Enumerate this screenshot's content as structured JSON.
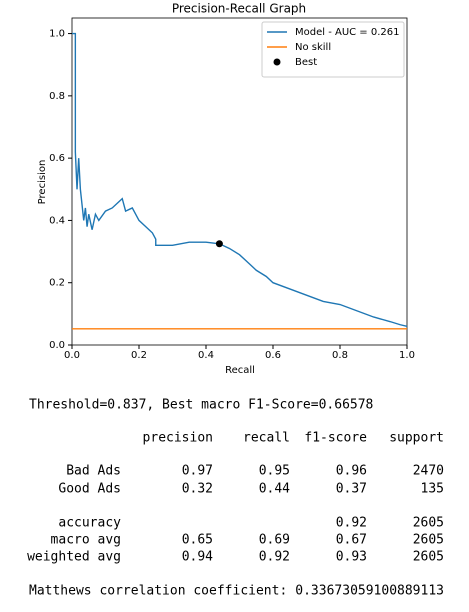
{
  "chart_data": {
    "type": "line",
    "title": "Precision-Recall Graph",
    "x_label": "Recall",
    "y_label": "Precision",
    "xlim": [
      0,
      1
    ],
    "ylim": [
      0,
      1.05
    ],
    "xticks": [
      {
        "value": 0,
        "label": "0.0"
      },
      {
        "value": 0.2,
        "label": "0.2"
      },
      {
        "value": 0.4,
        "label": "0.4"
      },
      {
        "value": 0.6,
        "label": "0.6"
      },
      {
        "value": 0.8,
        "label": "0.8"
      },
      {
        "value": 1,
        "label": "1.0"
      }
    ],
    "yticks": [
      {
        "value": 0,
        "label": "0.0"
      },
      {
        "value": 0.2,
        "label": "0.2"
      },
      {
        "value": 0.4,
        "label": "0.4"
      },
      {
        "value": 0.6,
        "label": "0.6"
      },
      {
        "value": 0.8,
        "label": "0.8"
      },
      {
        "value": 1,
        "label": "1.0"
      }
    ],
    "legend": "upper right",
    "series": [
      {
        "name": "Model - AUC = 0.261",
        "color": "#1f77b4",
        "kind": "line",
        "x": [
          0,
          0.01,
          0.01,
          0.015,
          0.02,
          0.025,
          0.03,
          0.035,
          0.04,
          0.045,
          0.05,
          0.06,
          0.07,
          0.08,
          0.1,
          0.12,
          0.14,
          0.15,
          0.16,
          0.18,
          0.2,
          0.22,
          0.24,
          0.25,
          0.25,
          0.3,
          0.35,
          0.4,
          0.44,
          0.47,
          0.5,
          0.52,
          0.55,
          0.58,
          0.6,
          0.65,
          0.7,
          0.75,
          0.8,
          0.85,
          0.9,
          0.95,
          0.98,
          1
        ],
        "values": [
          1,
          1,
          0.62,
          0.5,
          0.6,
          0.5,
          0.45,
          0.4,
          0.44,
          0.38,
          0.42,
          0.37,
          0.42,
          0.4,
          0.43,
          0.44,
          0.46,
          0.47,
          0.43,
          0.44,
          0.4,
          0.38,
          0.36,
          0.34,
          0.32,
          0.32,
          0.33,
          0.33,
          0.325,
          0.31,
          0.29,
          0.27,
          0.24,
          0.22,
          0.2,
          0.18,
          0.16,
          0.14,
          0.13,
          0.11,
          0.09,
          0.075,
          0.065,
          0.06
        ]
      },
      {
        "name": "No skill",
        "color": "#ff7f0e",
        "kind": "line",
        "x": [
          0,
          1
        ],
        "values": [
          0.052,
          0.052
        ]
      },
      {
        "name": "Best",
        "color": "#000000",
        "kind": "scatter",
        "x": [
          0.44
        ],
        "values": [
          0.325
        ]
      }
    ]
  },
  "report": {
    "threshold_line": "Threshold=0.837, Best macro F1-Score=0.66578",
    "columns": [
      "precision",
      "recall",
      "f1-score",
      "support"
    ],
    "rows": [
      [
        "Bad Ads",
        "0.97",
        "0.95",
        "0.96",
        "2470"
      ],
      [
        "Good Ads",
        "0.32",
        "0.44",
        "0.37",
        "135"
      ]
    ],
    "accuracy": {
      "label": "accuracy",
      "f1": "0.92",
      "support": "2605"
    },
    "avg_rows": [
      [
        "macro avg",
        "0.65",
        "0.69",
        "0.67",
        "2605"
      ],
      [
        "weighted avg",
        "0.94",
        "0.92",
        "0.93",
        "2605"
      ]
    ],
    "mcc_label": "Matthews correlation coefficient:",
    "mcc_value": "0.33673059100889113"
  }
}
